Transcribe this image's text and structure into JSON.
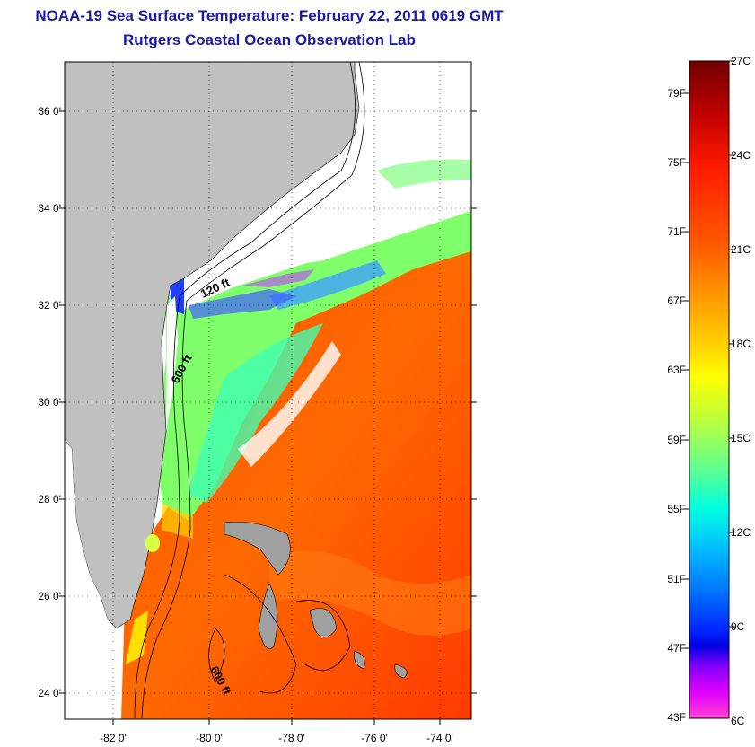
{
  "header": {
    "title": "NOAA-19 Sea Surface Temperature:  February 22, 2011 0619 GMT",
    "subtitle": "Rutgers Coastal Ocean Observation Lab"
  },
  "map": {
    "lat_labels": [
      "36 0'",
      "34 0'",
      "32 0'",
      "30 0'",
      "28 0'",
      "26 0'",
      "24 0'"
    ],
    "lon_labels": [
      "-82 0'",
      "-80 0'",
      "-78 0'",
      "-76 0'",
      "-74 0'"
    ],
    "isobath_labels": [
      "120 ft",
      "600 ft",
      "600 ft"
    ],
    "land_color": "#c0c0c0",
    "gulf_stream_color": "#ff4d00",
    "shelf_color": "#8cff5a"
  },
  "colorbar": {
    "fahrenheit_labels": [
      "79F",
      "75F",
      "71F",
      "67F",
      "63F",
      "59F",
      "55F",
      "51F",
      "47F",
      "43F"
    ],
    "celsius_labels": [
      "27C",
      "24C",
      "21C",
      "18C",
      "15C",
      "12C",
      "9C",
      "6C"
    ],
    "colors": [
      "#800000",
      "#d00000",
      "#ff2000",
      "#ff6000",
      "#ff9900",
      "#ffcc00",
      "#ffff00",
      "#c0ff40",
      "#60ff90",
      "#00ffe0",
      "#00c8ff",
      "#0080ff",
      "#0030ff",
      "#0000f0",
      "#8000ff",
      "#ff00ff",
      "#ff40d0"
    ]
  }
}
